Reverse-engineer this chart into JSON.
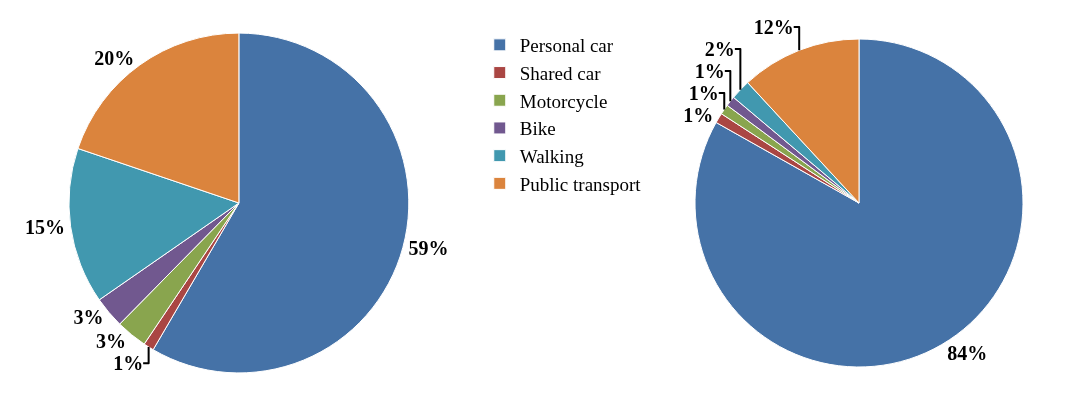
{
  "chart_data": {
    "type": "pie",
    "categories": [
      "Personal car",
      "Shared car",
      "Motorcycle",
      "Bike",
      "Walking",
      "Public transport"
    ],
    "colors": [
      "#4572a7",
      "#aa4643",
      "#89a54e",
      "#71588f",
      "#4198af",
      "#db843d"
    ],
    "legend": "right",
    "series": [
      {
        "values": [
          59,
          1,
          3,
          3,
          15,
          20
        ],
        "value_labels": [
          "59%",
          "1%",
          "3%",
          "3%",
          "15%",
          "20%"
        ]
      },
      {
        "values": [
          84,
          1,
          1,
          1,
          2,
          12
        ],
        "value_labels": [
          "84%",
          "1%",
          "1%",
          "1%",
          "2%",
          "12%"
        ]
      }
    ]
  }
}
